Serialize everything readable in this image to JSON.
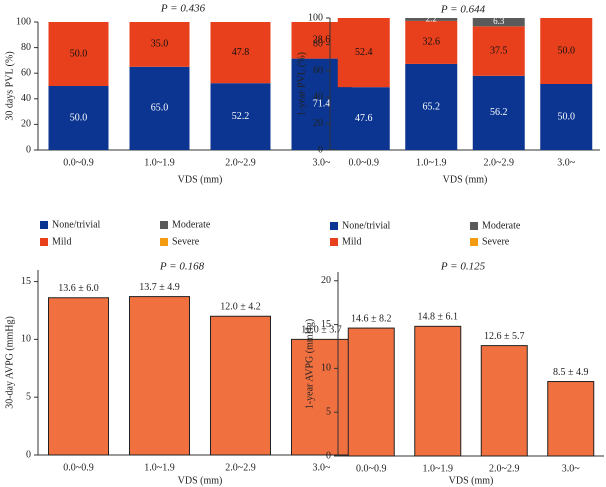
{
  "chart_data": [
    {
      "type": "stacked_bar",
      "title": "P = 0.436",
      "ylabel": "30 days PVL (%)",
      "xlabel": "VDS (mm)",
      "categories": [
        "0.0~0.9",
        "1.0~1.9",
        "2.0~2.9",
        "3.0~"
      ],
      "series": [
        {
          "name": "None/trivial",
          "color": "#0b3590",
          "values": [
            50.0,
            65.0,
            52.2,
            71.4
          ],
          "value_labels": [
            "50.0",
            "65.0",
            "52.2",
            "71.4"
          ]
        },
        {
          "name": "Mild",
          "color": "#e8401c",
          "values": [
            50.0,
            35.0,
            47.8,
            28.6
          ],
          "value_labels": [
            "50.0",
            "35.0",
            "47.8",
            "28.6"
          ]
        },
        {
          "name": "Moderate",
          "color": "#5a5a5a",
          "values": [
            0,
            0,
            0,
            0
          ]
        },
        {
          "name": "Severe",
          "color": "#f39c12",
          "values": [
            0,
            0,
            0,
            0
          ]
        }
      ],
      "ylim": [
        0,
        100
      ],
      "yticks": [
        0,
        20,
        40,
        60,
        80,
        100
      ],
      "legend": "bottom"
    },
    {
      "type": "stacked_bar",
      "title": "P = 0.644",
      "ylabel": "1-year PVL (%)",
      "xlabel": "VDS (mm)",
      "categories": [
        "0.0~0.9",
        "1.0~1.9",
        "2.0~2.9",
        "3.0~"
      ],
      "series": [
        {
          "name": "None/trivial",
          "color": "#0b3590",
          "values": [
            47.6,
            65.2,
            56.2,
            50.0
          ],
          "value_labels": [
            "47.6",
            "65.2",
            "56.2",
            "50.0"
          ]
        },
        {
          "name": "Mild",
          "color": "#e8401c",
          "values": [
            52.4,
            32.6,
            37.5,
            50.0
          ],
          "value_labels": [
            "52.4",
            "32.6",
            "37.5",
            "50.0"
          ]
        },
        {
          "name": "Moderate",
          "color": "#5a5a5a",
          "values": [
            0,
            2.2,
            6.3,
            0
          ],
          "value_labels": [
            null,
            "2.2",
            "6.3",
            null
          ]
        },
        {
          "name": "Severe",
          "color": "#f39c12",
          "values": [
            0,
            0,
            0,
            0
          ]
        }
      ],
      "ylim": [
        0,
        100
      ],
      "yticks": [
        0,
        20,
        40,
        60,
        80,
        100
      ],
      "legend": "bottom"
    },
    {
      "type": "bar",
      "title": "P = 0.168",
      "ylabel": "30-day AVPG (mmHg)",
      "xlabel": "VDS (mm)",
      "categories": [
        "0.0~0.9",
        "1.0~1.9",
        "2.0~2.9",
        "3.0~"
      ],
      "values": [
        13.6,
        13.7,
        12.0,
        10.0
      ],
      "value_labels": [
        "13.6 ± 6.0",
        "13.7 ± 4.9",
        "12.0 ± 4.2",
        "10.0 ± 3.7"
      ],
      "color": "#f07040",
      "ylim": [
        0,
        16
      ],
      "yticks": [
        0,
        5,
        10,
        15
      ]
    },
    {
      "type": "bar",
      "title": "P = 0.125",
      "ylabel": "1-year AVPG (mmHg)",
      "xlabel": "VDS (mm)",
      "categories": [
        "0.0~0.9",
        "1.0~1.9",
        "2.0~2.9",
        "3.0~"
      ],
      "values": [
        14.6,
        14.8,
        12.6,
        8.5
      ],
      "value_labels": [
        "14.6 ± 8.2",
        "14.8 ± 6.1",
        "12.6 ± 5.7",
        "8.5 ± 4.9"
      ],
      "color": "#f07040",
      "ylim": [
        0,
        21
      ],
      "yticks": [
        0,
        5,
        10,
        15,
        20
      ]
    }
  ]
}
